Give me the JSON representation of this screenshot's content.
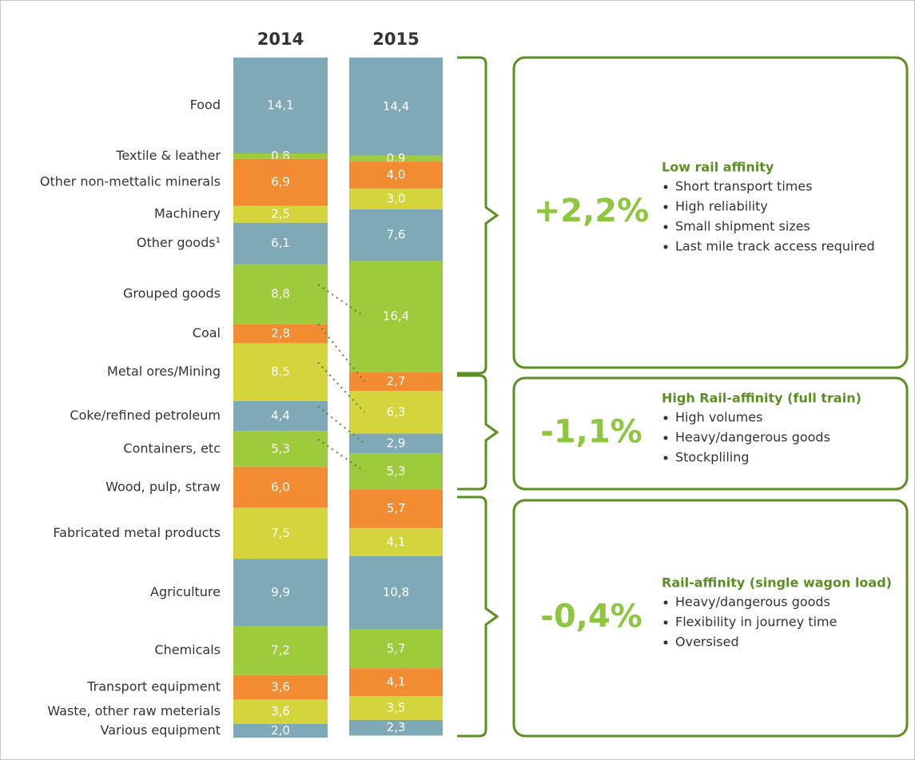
{
  "chart_data": {
    "type": "stacked-bar",
    "categories": [
      "Food",
      "Textile & leather",
      "Other non-mettalic minerals",
      "Machinery",
      "Other goods¹",
      "Grouped goods",
      "Coal",
      "Metal ores/Mining",
      "Coke/refined petroleum",
      "Containers, etc",
      "Wood, pulp, straw",
      "Fabricated metal products",
      "Agriculture",
      "Chemicals",
      "Transport equipment",
      "Waste, other raw meterials",
      "Various equipment"
    ],
    "colors": [
      "#7fa9b6",
      "#9dcb3c",
      "#f28c33",
      "#d4d53d",
      "#7fa9b6",
      "#9dcb3c",
      "#f28c33",
      "#d4d53d",
      "#7fa9b6",
      "#9dcb3c",
      "#f28c33",
      "#d4d53d",
      "#7fa9b6",
      "#9dcb3c",
      "#f28c33",
      "#d4d53d",
      "#7fa9b6"
    ],
    "ylim": [
      0,
      100
    ],
    "series": [
      {
        "name": "2014",
        "values": [
          14.1,
          0.8,
          6.9,
          2.5,
          6.1,
          8.8,
          2.8,
          8.5,
          4.4,
          5.3,
          6.0,
          7.5,
          9.9,
          7.2,
          3.6,
          3.6,
          2.0
        ],
        "value_labels": [
          "14,1",
          "0,8",
          "6,9",
          "2,5",
          "6,1",
          "8,8",
          "2,8",
          "8,5",
          "4,4",
          "5,3",
          "6,0",
          "7,5",
          "9,9",
          "7,2",
          "3,6",
          "3,6",
          "2,0"
        ]
      },
      {
        "name": "2015",
        "values": [
          14.4,
          0.9,
          4.0,
          3.0,
          7.6,
          16.4,
          2.7,
          6.3,
          2.9,
          5.3,
          5.7,
          4.1,
          10.8,
          5.7,
          4.1,
          3.5,
          2.3
        ],
        "value_labels": [
          "14,4",
          "0,9",
          "4,0",
          "3,0",
          "7,6",
          "16,4",
          "2,7",
          "6,3",
          "2,9",
          "5,3",
          "5,7",
          "4,1",
          "10,8",
          "5,7",
          "4,1",
          "3,5",
          "2,3"
        ]
      }
    ],
    "groups": [
      {
        "change": "+2,2%",
        "title": "Low rail affinity",
        "bullets": [
          "Short transport times",
          "High reliability",
          "Small shipment sizes",
          "Last mile track access required"
        ]
      },
      {
        "change": "-1,1%",
        "title": "High Rail-affinity (full train)",
        "bullets": [
          "High volumes",
          "Heavy/dangerous goods",
          "Stockpliling"
        ]
      },
      {
        "change": "-0,4%",
        "title": "Rail-affinity (single wagon load)",
        "bullets": [
          "Heavy/dangerous goods",
          "Flexibility in journey time",
          "Oversised"
        ]
      }
    ]
  }
}
